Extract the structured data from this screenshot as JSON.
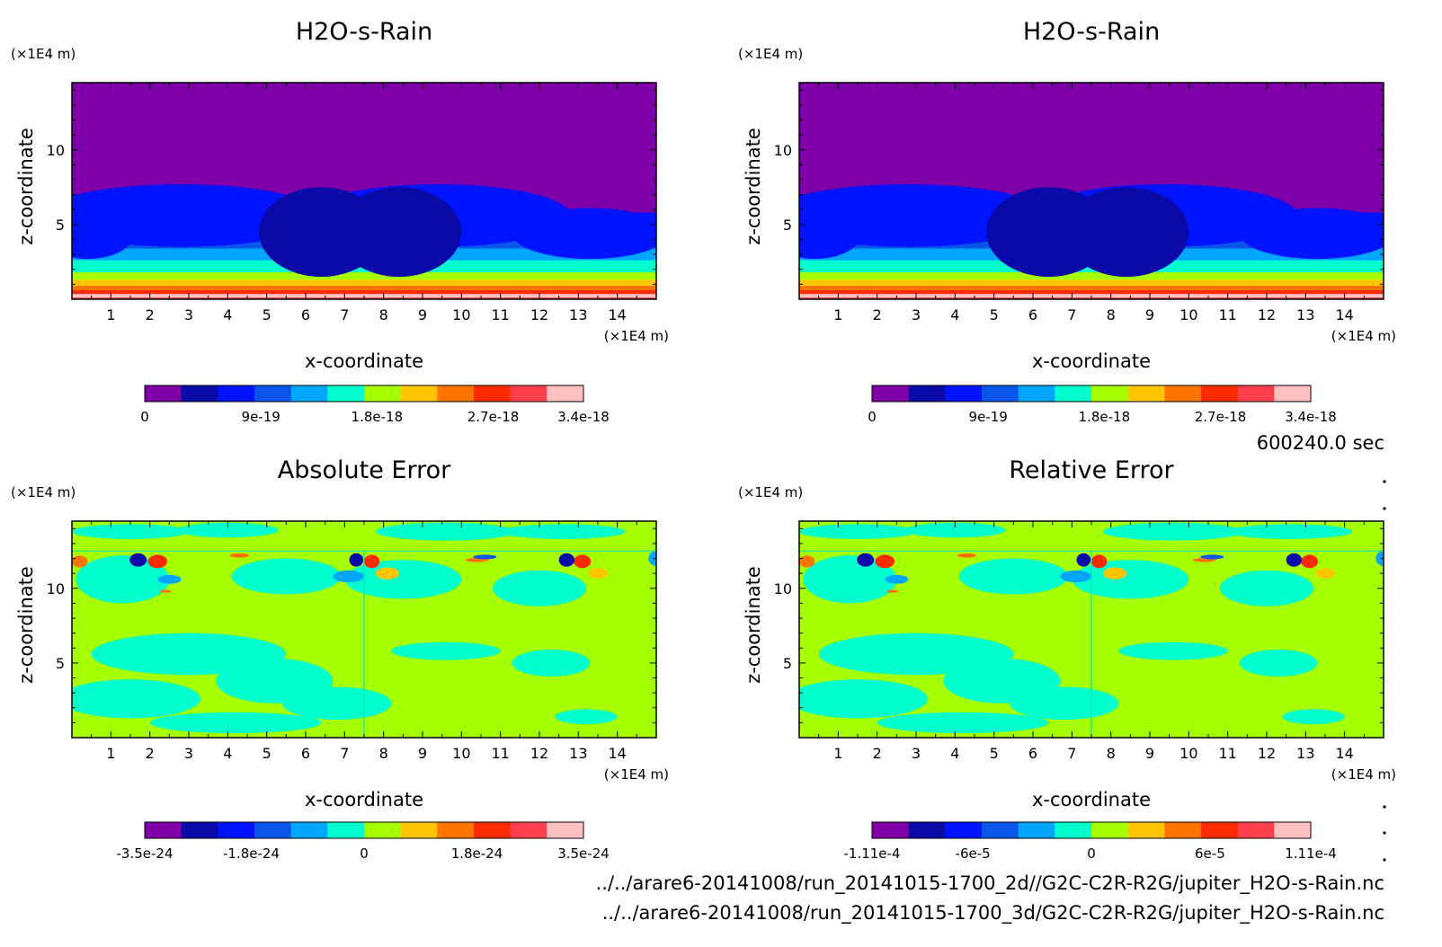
{
  "footer": {
    "time": "600240.0 sec",
    "file1": "../../arare6-20141008/run_20141015-1700_2d//G2C-C2R-R2G/jupiter_H2O-s-Rain.nc",
    "file2": "../../arare6-20141008/run_20141015-1700_3d/G2C-C2R-R2G/jupiter_H2O-s-Rain.nc"
  },
  "palette": [
    "#7f00a9",
    "#0a0aa8",
    "#0013ff",
    "#0a55ea",
    "#00a6ff",
    "#00ffcc",
    "#a6ff00",
    "#ffc500",
    "#ff7300",
    "#ff2a00",
    "#ff3f4d",
    "#ffc0c0"
  ],
  "chart_data": [
    {
      "type": "heatmap",
      "title": "H2O-s-Rain",
      "xlabel": "x-coordinate",
      "ylabel": "z-coordinate",
      "x_unit": "(×1E4 m)",
      "y_unit": "(×1E4 m)",
      "xlim": [
        0,
        15
      ],
      "ylim": [
        0,
        14.5
      ],
      "x_ticks": [
        "1",
        "2",
        "3",
        "4",
        "5",
        "6",
        "7",
        "8",
        "9",
        "10",
        "11",
        "12",
        "13",
        "14"
      ],
      "y_ticks": [
        "5",
        "10"
      ],
      "colorbar": {
        "min": 0,
        "max": 3.4e-18,
        "levels": 12,
        "tick_labels": [
          [
            "0",
            0
          ],
          [
            "9e-19",
            9e-19
          ],
          [
            "1.8e-18",
            1.8e-18
          ],
          [
            "2.7e-18",
            2.7e-18
          ],
          [
            "3.4e-18",
            3.4e-18
          ]
        ]
      },
      "field": "layered"
    },
    {
      "type": "heatmap",
      "title": "H2O-s-Rain",
      "xlabel": "x-coordinate",
      "ylabel": "z-coordinate",
      "x_unit": "(×1E4 m)",
      "y_unit": "(×1E4 m)",
      "xlim": [
        0,
        15
      ],
      "ylim": [
        0,
        14.5
      ],
      "x_ticks": [
        "1",
        "2",
        "3",
        "4",
        "5",
        "6",
        "7",
        "8",
        "9",
        "10",
        "11",
        "12",
        "13",
        "14"
      ],
      "y_ticks": [
        "5",
        "10"
      ],
      "colorbar": {
        "min": 0,
        "max": 3.4e-18,
        "levels": 12,
        "tick_labels": [
          [
            "0",
            0
          ],
          [
            "9e-19",
            9e-19
          ],
          [
            "1.8e-18",
            1.8e-18
          ],
          [
            "2.7e-18",
            2.7e-18
          ],
          [
            "3.4e-18",
            3.4e-18
          ]
        ]
      },
      "field": "layered"
    },
    {
      "type": "heatmap",
      "title": "Absolute Error",
      "xlabel": "x-coordinate",
      "ylabel": "z-coordinate",
      "x_unit": "(×1E4 m)",
      "y_unit": "(×1E4 m)",
      "xlim": [
        0,
        15
      ],
      "ylim": [
        0,
        14.5
      ],
      "x_ticks": [
        "1",
        "2",
        "3",
        "4",
        "5",
        "6",
        "7",
        "8",
        "9",
        "10",
        "11",
        "12",
        "13",
        "14"
      ],
      "y_ticks": [
        "5",
        "10"
      ],
      "colorbar": {
        "min": -3.5e-24,
        "max": 3.5e-24,
        "levels": 12,
        "tick_labels": [
          [
            "-3.5e-24",
            -3.5e-24
          ],
          [
            "-1.8e-24",
            -1.8e-24
          ],
          [
            "0",
            0
          ],
          [
            "1.8e-24",
            1.8e-24
          ],
          [
            "3.5e-24",
            3.5e-24
          ]
        ]
      },
      "field": "error"
    },
    {
      "type": "heatmap",
      "title": "Relative Error",
      "xlabel": "x-coordinate",
      "ylabel": "z-coordinate",
      "x_unit": "(×1E4 m)",
      "y_unit": "(×1E4 m)",
      "xlim": [
        0,
        15
      ],
      "ylim": [
        0,
        14.5
      ],
      "x_ticks": [
        "1",
        "2",
        "3",
        "4",
        "5",
        "6",
        "7",
        "8",
        "9",
        "10",
        "11",
        "12",
        "13",
        "14"
      ],
      "y_ticks": [
        "5",
        "10"
      ],
      "colorbar": {
        "min": -0.000111,
        "max": 0.000111,
        "levels": 12,
        "tick_labels": [
          [
            "-1.11e-4",
            -0.000111
          ],
          [
            "-6e-5",
            -6e-05
          ],
          [
            "0",
            0
          ],
          [
            "6e-5",
            6e-05
          ],
          [
            "1.11e-4",
            0.000111
          ]
        ]
      },
      "field": "error"
    }
  ]
}
